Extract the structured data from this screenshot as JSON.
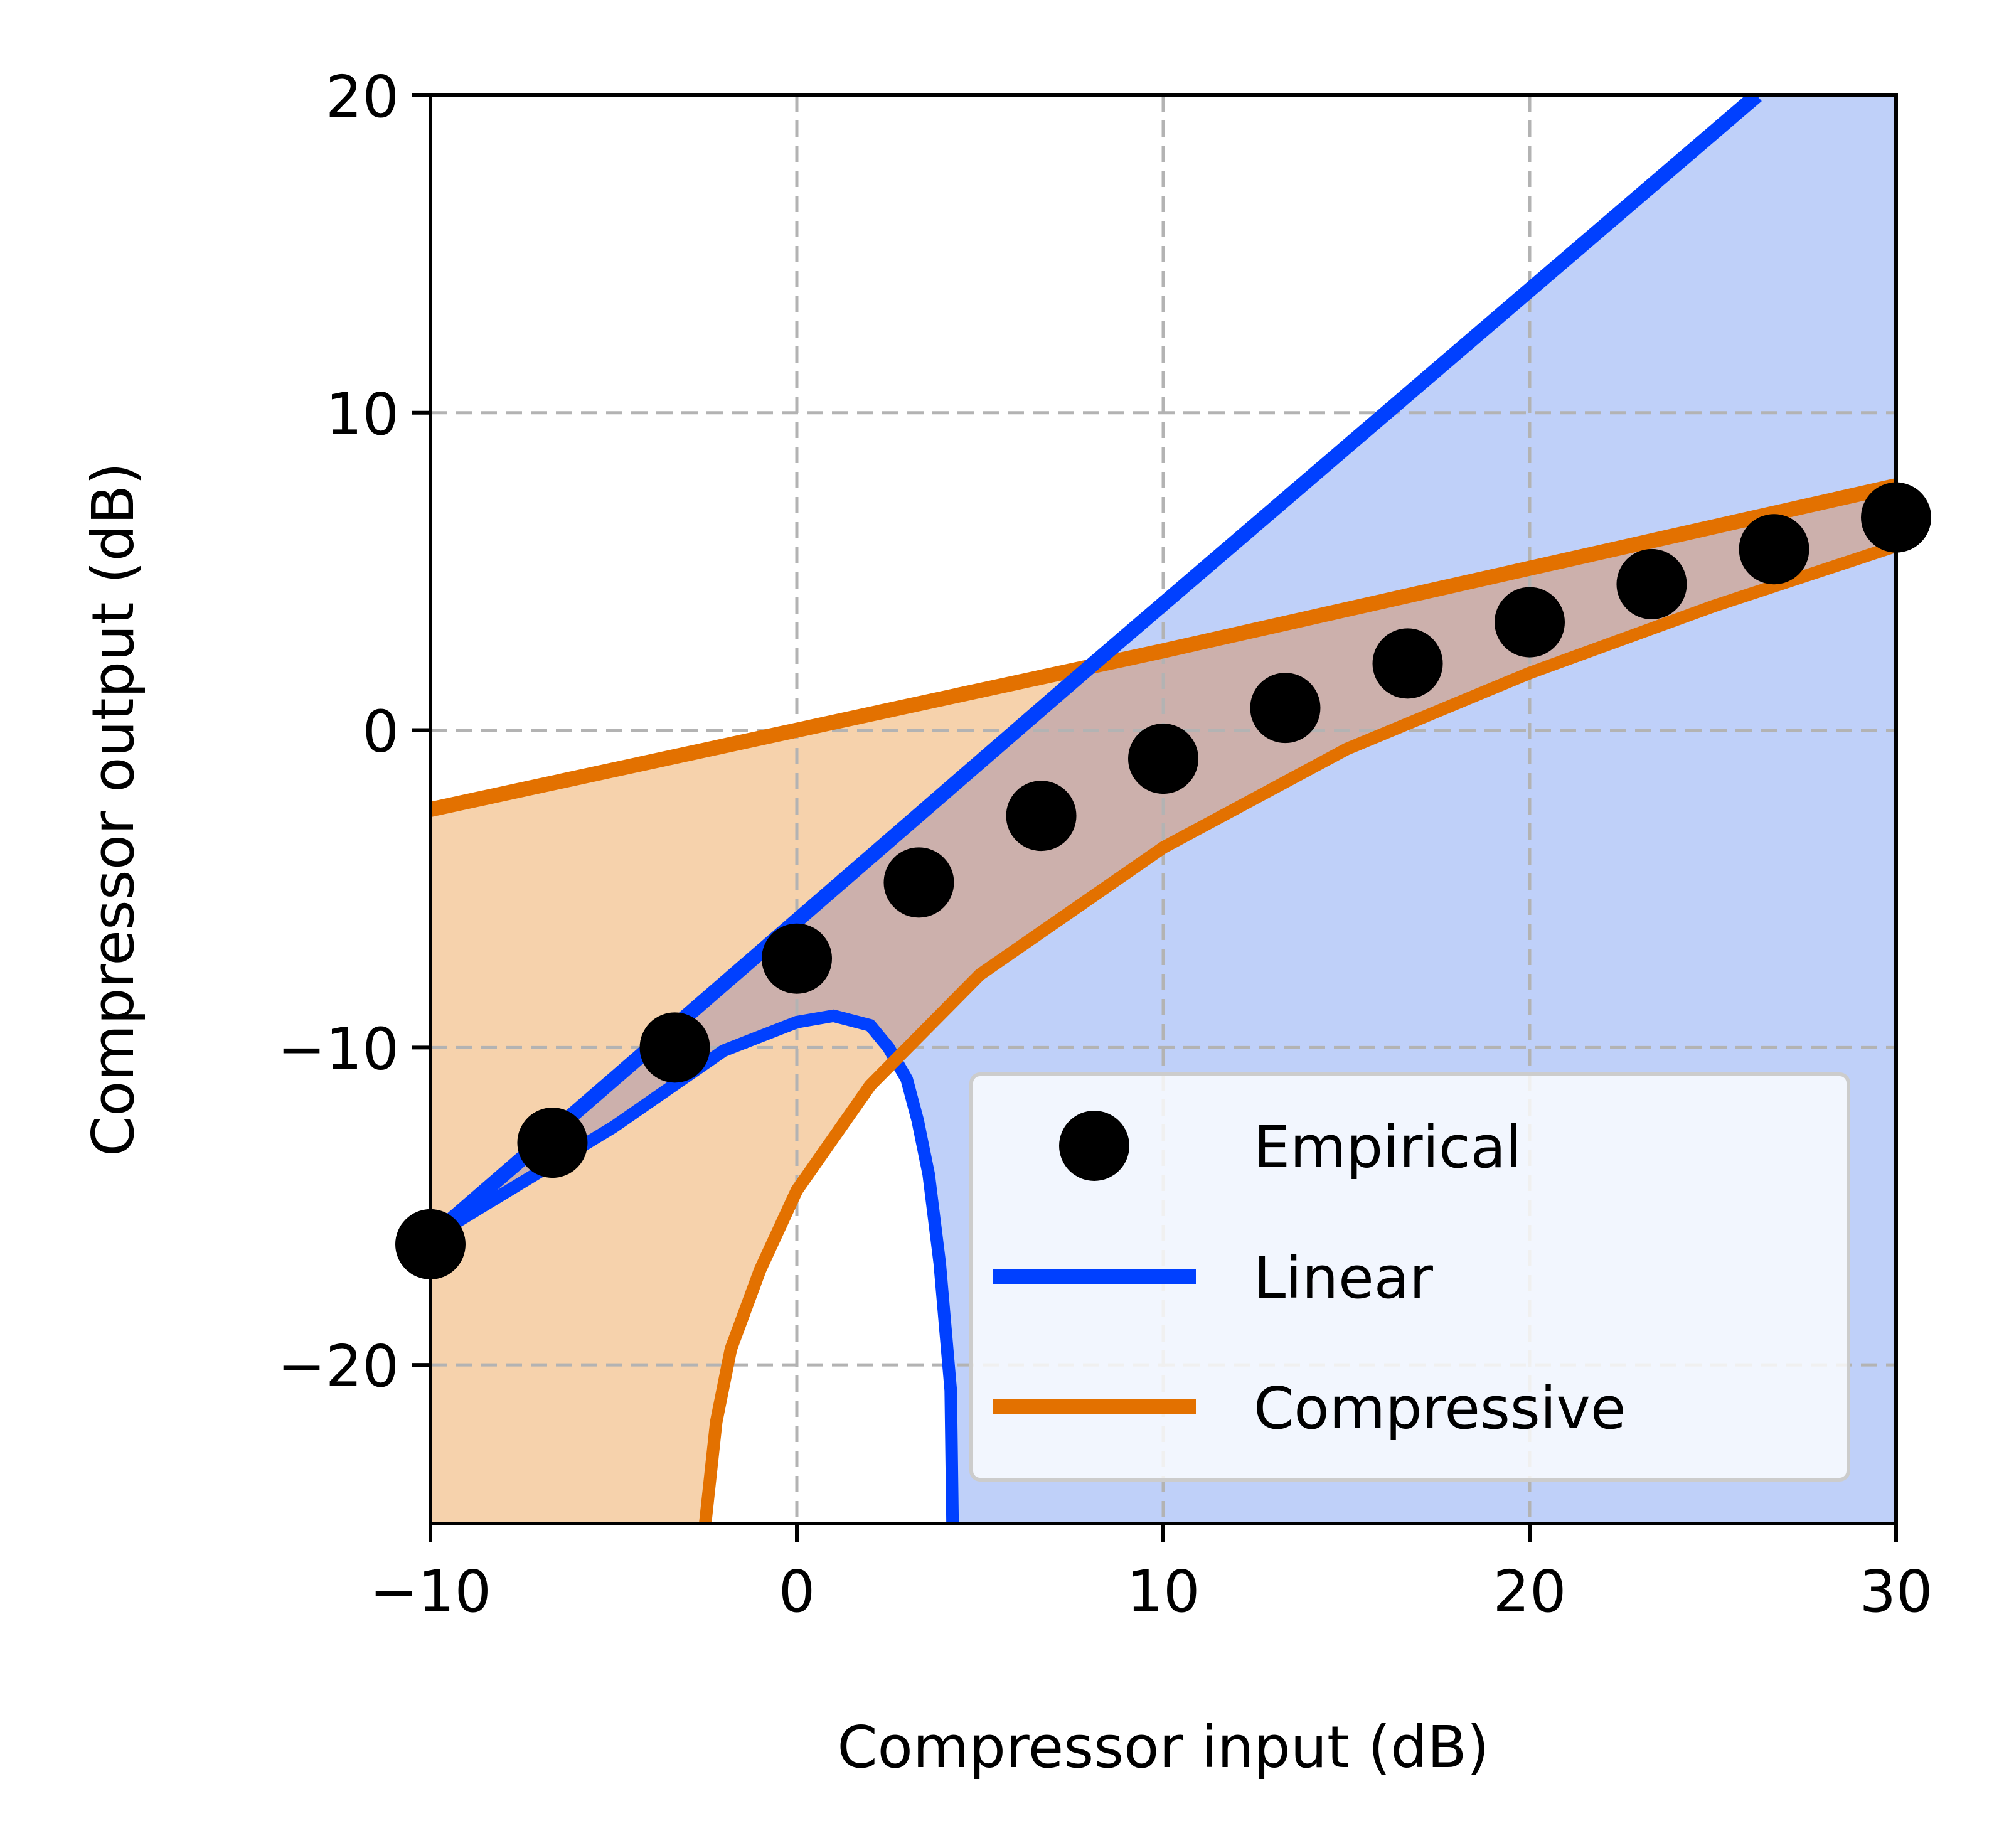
{
  "chart_data": {
    "type": "line",
    "title": "",
    "xlabel": "Compressor input (dB)",
    "ylabel": "Compressor output (dB)",
    "xlim": [
      -10,
      30
    ],
    "ylim": [
      -25,
      20
    ],
    "xticks": [
      -10,
      0,
      10,
      20,
      30
    ],
    "yticks": [
      -20,
      -10,
      0,
      10,
      20
    ],
    "xtick_labels": [
      "−10",
      "0",
      "10",
      "20",
      "30"
    ],
    "ytick_labels": [
      "−20",
      "−10",
      "0",
      "10",
      "20"
    ],
    "grid": true,
    "grid_style": "dashed",
    "legend_position": "lower-right",
    "colors": {
      "empirical": "#000000",
      "linear": "#0040ff",
      "linear_band": "#bfd0f9",
      "compressive": "#e37100",
      "compressive_band": "#f6d2ac",
      "overlap_band": "#ccb0ac",
      "grid": "#b3b3b3"
    },
    "series": [
      {
        "name": "Empirical",
        "kind": "markers",
        "x": [
          -10,
          -6.67,
          -3.33,
          0,
          3.33,
          6.67,
          10,
          13.33,
          16.67,
          20,
          23.33,
          26.67,
          30
        ],
        "y": [
          -16.2,
          -13.0,
          -10.0,
          -7.2,
          -4.8,
          -2.7,
          -0.9,
          0.7,
          2.1,
          3.4,
          4.6,
          5.7,
          6.7
        ]
      },
      {
        "name": "Linear",
        "kind": "line",
        "x": [
          -10,
          0,
          8,
          26.2
        ],
        "y": [
          -16.0,
          -6.0,
          2.0,
          20.0
        ]
      },
      {
        "name": "Compressive",
        "kind": "line",
        "x": [
          -10,
          0,
          10,
          20,
          30
        ],
        "y": [
          -2.5,
          0.0,
          2.5,
          5.1,
          7.7
        ]
      }
    ],
    "bands": [
      {
        "for": "Linear",
        "upper": {
          "x": [
            -10,
            26.2,
            30
          ],
          "y": [
            -16.0,
            20.0,
            20.0
          ]
        },
        "lower": {
          "x": [
            -10,
            -5,
            -2,
            0,
            1,
            2,
            2.5,
            3,
            3.3,
            3.6,
            3.9,
            4.2,
            4.25
          ],
          "y": [
            -16.0,
            -12.5,
            -10.1,
            -9.2,
            -9.0,
            -9.3,
            -10.0,
            -11.0,
            -12.3,
            -14.0,
            -16.8,
            -20.8,
            -25.0
          ]
        }
      },
      {
        "for": "Compressive",
        "upper": {
          "x": [
            -10,
            30
          ],
          "y": [
            -2.5,
            7.7
          ]
        },
        "lower": {
          "x": [
            -2.5,
            -2.2,
            -1.8,
            -1,
            0,
            2,
            5,
            10,
            15,
            20,
            25,
            30
          ],
          "y": [
            -25.0,
            -21.8,
            -19.5,
            -17.0,
            -14.5,
            -11.2,
            -7.7,
            -3.7,
            -0.6,
            1.8,
            3.9,
            5.8
          ]
        }
      }
    ]
  }
}
